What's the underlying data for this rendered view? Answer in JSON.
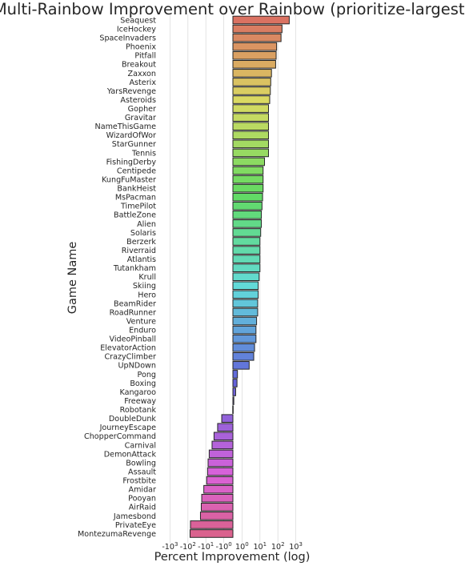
{
  "chart_data": {
    "type": "bar",
    "orientation": "horizontal",
    "title": "Multi-Rainbow Improvement over Rainbow (prioritize-largest)",
    "xlabel": "Percent Improvement (log)",
    "ylabel": "Game Name",
    "xscale": "symlog",
    "xlim": [
      -1000,
      1000
    ],
    "grid": "vertical",
    "xticks": [
      {
        "value": -1000,
        "base": "-10",
        "exp": "3"
      },
      {
        "value": -100,
        "base": "-10",
        "exp": "2"
      },
      {
        "value": -10,
        "base": "-10",
        "exp": "1"
      },
      {
        "value": -1,
        "base": "-10",
        "exp": "0"
      },
      {
        "value": 1,
        "base": "10",
        "exp": "0"
      },
      {
        "value": 10,
        "base": "10",
        "exp": "1"
      },
      {
        "value": 100,
        "base": "10",
        "exp": "2"
      },
      {
        "value": 1000,
        "base": "10",
        "exp": "3"
      }
    ],
    "categories": [
      "Seaquest",
      "IceHockey",
      "SpaceInvaders",
      "Phoenix",
      "Pitfall",
      "Breakout",
      "Zaxxon",
      "Asterix",
      "YarsRevenge",
      "Asteroids",
      "Gopher",
      "Gravitar",
      "NameThisGame",
      "WizardOfWor",
      "StarGunner",
      "Tennis",
      "FishingDerby",
      "Centipede",
      "KungFuMaster",
      "BankHeist",
      "MsPacman",
      "TimePilot",
      "BattleZone",
      "Alien",
      "Solaris",
      "Berzerk",
      "Riverraid",
      "Atlantis",
      "Tutankham",
      "Krull",
      "Skiing",
      "Hero",
      "BeamRider",
      "RoadRunner",
      "Venture",
      "Enduro",
      "VideoPinball",
      "ElevatorAction",
      "CrazyClimber",
      "UpNDown",
      "Pong",
      "Boxing",
      "Kangaroo",
      "Freeway",
      "Robotank",
      "DoubleDunk",
      "JourneyEscape",
      "ChopperCommand",
      "Carnival",
      "DemonAttack",
      "Bowling",
      "Assault",
      "Frostbite",
      "Amidar",
      "Pooyan",
      "AirRaid",
      "Jamesbond",
      "PrivateEye",
      "MontezumaRevenge"
    ],
    "values": [
      430,
      170,
      150,
      85,
      80,
      75,
      44,
      40,
      38,
      35,
      30,
      30,
      30,
      30,
      30,
      30,
      18,
      15,
      15,
      15,
      14,
      13,
      12,
      12,
      11,
      10,
      10,
      10,
      10,
      9,
      8,
      8,
      7.5,
      7.5,
      6.5,
      6,
      6,
      5,
      4.5,
      2.5,
      0.5,
      0.45,
      0.3,
      0.1,
      -0.02,
      -1.3,
      -2.2,
      -3.5,
      -4.5,
      -6.5,
      -7.5,
      -8,
      -9,
      -13,
      -17,
      -18,
      -20,
      -72,
      -76
    ]
  }
}
